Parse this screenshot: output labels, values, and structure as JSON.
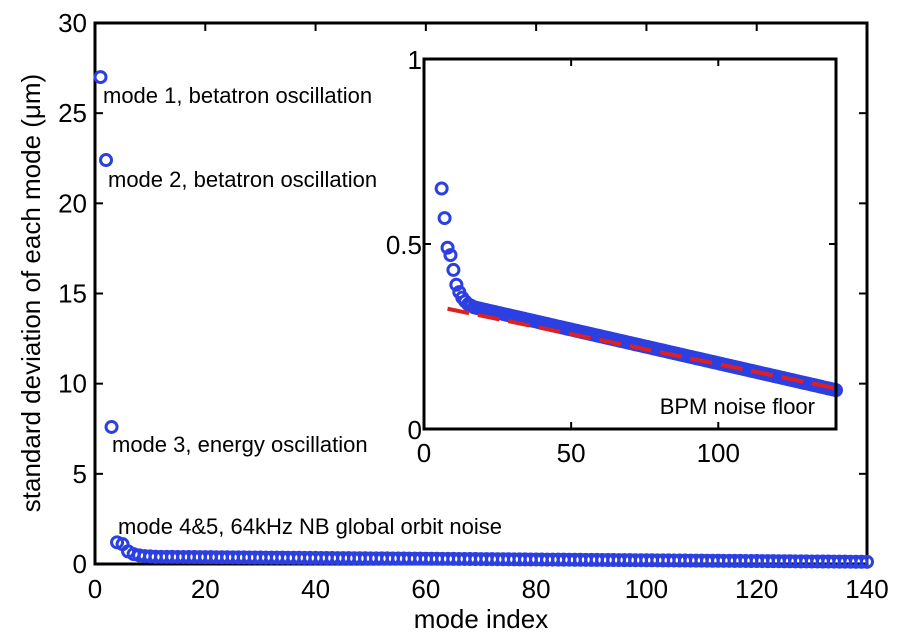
{
  "chart_data": [
    {
      "type": "scatter",
      "name": "main",
      "title": "",
      "xlabel": "mode index",
      "ylabel": "standard deviation of each mode (μm)",
      "xlim": [
        0,
        140
      ],
      "ylim": [
        0,
        30
      ],
      "xticks": [
        "0",
        "20",
        "40",
        "60",
        "80",
        "100",
        "120",
        "140"
      ],
      "yticks": [
        "0",
        "5",
        "10",
        "15",
        "20",
        "25",
        "30"
      ],
      "xtick_values": [
        0,
        20,
        40,
        60,
        80,
        100,
        120,
        140
      ],
      "ytick_values": [
        0,
        5,
        10,
        15,
        20,
        25,
        30
      ],
      "marker_color": "#2c3fe0",
      "points_head": [
        [
          1,
          27.0
        ],
        [
          2,
          22.4
        ],
        [
          3,
          7.6
        ],
        [
          4,
          1.2
        ],
        [
          5,
          1.1
        ],
        [
          6,
          0.7
        ],
        [
          7,
          0.55
        ],
        [
          8,
          0.48
        ],
        [
          9,
          0.44
        ],
        [
          10,
          0.42
        ]
      ],
      "tail": {
        "x_start": 11,
        "x_end": 140,
        "y_start": 0.4,
        "y_end": 0.12
      },
      "annotations": [
        {
          "text": "mode 1, betatron oscillation",
          "x": 1,
          "y": 27.0
        },
        {
          "text": "mode 2, betatron oscillation",
          "x": 2,
          "y": 22.4
        },
        {
          "text": "mode 3, energy oscillation",
          "x": 3,
          "y": 7.6
        },
        {
          "text": "mode 4&5, 64kHz NB global orbit noise",
          "x": 4,
          "y": 1.2
        }
      ]
    },
    {
      "type": "scatter",
      "name": "inset",
      "xlim": [
        0,
        140
      ],
      "ylim": [
        0,
        1
      ],
      "xticks": [
        "0",
        "50",
        "100"
      ],
      "yticks": [
        "0",
        "0.5",
        "1"
      ],
      "xtick_values": [
        0,
        50,
        100
      ],
      "ytick_values": [
        0,
        0.5,
        1
      ],
      "marker_color": "#2c3fe0",
      "points_head": [
        [
          6,
          0.65
        ],
        [
          7,
          0.57
        ],
        [
          8,
          0.49
        ],
        [
          9,
          0.47
        ],
        [
          10,
          0.43
        ],
        [
          11,
          0.39
        ],
        [
          12,
          0.37
        ],
        [
          13,
          0.355
        ],
        [
          14,
          0.345
        ],
        [
          15,
          0.337
        ],
        [
          16,
          0.333
        ],
        [
          17,
          0.329
        ]
      ],
      "tail": {
        "x_start": 18,
        "x_end": 140,
        "y_start": 0.327,
        "y_end": 0.105
      },
      "fit_line": {
        "x": [
          8,
          140
        ],
        "y": [
          0.325,
          0.11
        ],
        "color": "#e02020",
        "style": "dashed"
      },
      "annotation": {
        "text": "BPM noise floor"
      }
    }
  ]
}
